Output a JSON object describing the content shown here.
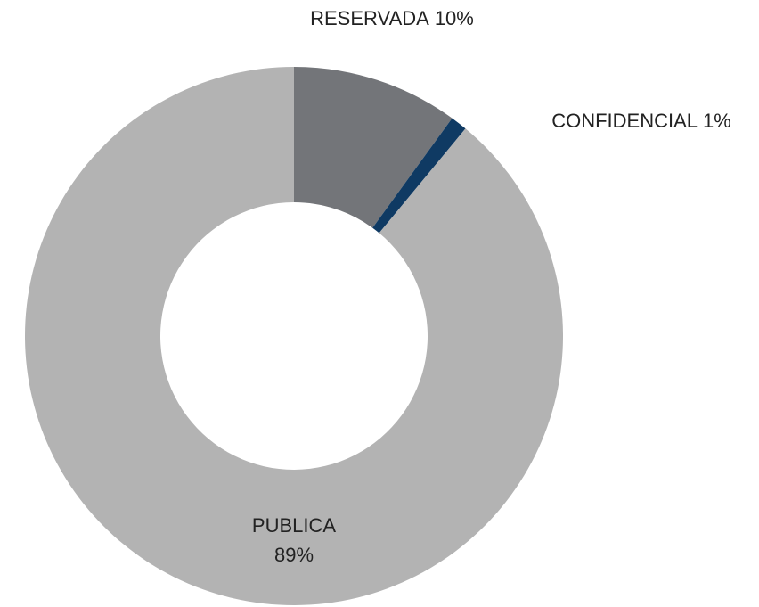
{
  "chart_data": {
    "type": "donut",
    "categories": [
      "RESERVADA",
      "CONFIDENCIAL",
      "PUBLICA"
    ],
    "values": [
      10,
      1,
      89
    ],
    "value_labels": [
      "10%",
      "1%",
      "89%"
    ],
    "colors": [
      "#737579",
      "#0f3a63",
      "#b3b3b3"
    ]
  }
}
